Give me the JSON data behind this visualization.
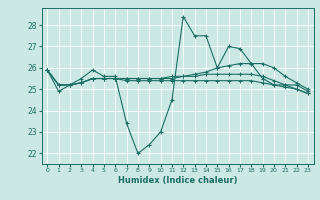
{
  "title": "",
  "xlabel": "Humidex (Indice chaleur)",
  "bg_color": "#cce8e4",
  "line_color": "#1a6e64",
  "grid_color": "#ffffff",
  "xlim": [
    -0.5,
    23.5
  ],
  "ylim": [
    21.5,
    28.8
  ],
  "yticks": [
    22,
    23,
    24,
    25,
    26,
    27,
    28
  ],
  "xticks": [
    0,
    1,
    2,
    3,
    4,
    5,
    6,
    7,
    8,
    9,
    10,
    11,
    12,
    13,
    14,
    15,
    16,
    17,
    18,
    19,
    20,
    21,
    22,
    23
  ],
  "series": [
    [
      25.9,
      24.9,
      25.2,
      25.5,
      25.9,
      25.6,
      25.6,
      23.4,
      22.0,
      22.4,
      23.0,
      24.5,
      28.4,
      27.5,
      27.5,
      26.0,
      27.0,
      26.9,
      26.2,
      25.5,
      25.2,
      25.2,
      25.2,
      24.9
    ],
    [
      25.9,
      25.2,
      25.2,
      25.3,
      25.5,
      25.5,
      25.5,
      25.5,
      25.5,
      25.5,
      25.5,
      25.6,
      25.6,
      25.7,
      25.8,
      26.0,
      26.1,
      26.2,
      26.2,
      26.2,
      26.0,
      25.6,
      25.3,
      25.0
    ],
    [
      25.9,
      25.2,
      25.2,
      25.3,
      25.5,
      25.5,
      25.5,
      25.5,
      25.5,
      25.5,
      25.5,
      25.5,
      25.6,
      25.6,
      25.7,
      25.7,
      25.7,
      25.7,
      25.7,
      25.6,
      25.4,
      25.2,
      25.0,
      24.8
    ],
    [
      25.9,
      25.2,
      25.2,
      25.3,
      25.5,
      25.5,
      25.5,
      25.4,
      25.4,
      25.4,
      25.4,
      25.4,
      25.4,
      25.4,
      25.4,
      25.4,
      25.4,
      25.4,
      25.4,
      25.3,
      25.2,
      25.1,
      25.0,
      24.8
    ]
  ]
}
